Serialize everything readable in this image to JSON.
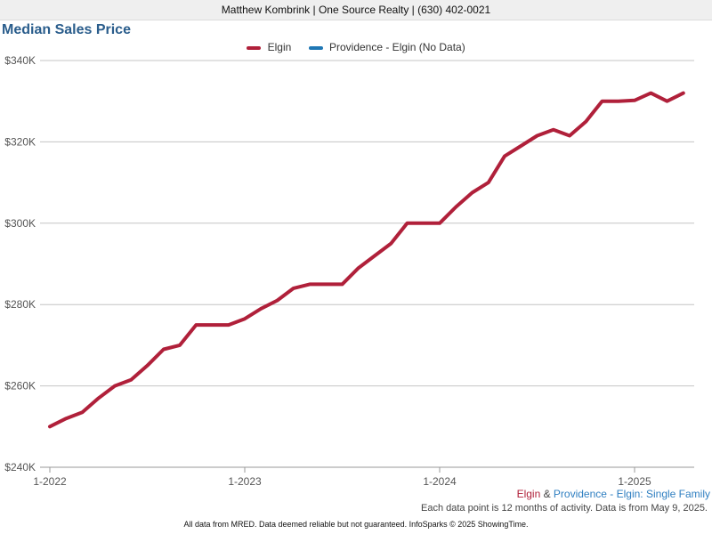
{
  "header": {
    "text": "Matthew Kombrink | One Source Realty | (630) 402-0021"
  },
  "chart_data": {
    "type": "line",
    "title": "Median Sales Price",
    "ylim": [
      240000,
      340000
    ],
    "y_ticks": [
      {
        "value": 240000,
        "label": "$240K"
      },
      {
        "value": 260000,
        "label": "$260K"
      },
      {
        "value": 280000,
        "label": "$280K"
      },
      {
        "value": 300000,
        "label": "$300K"
      },
      {
        "value": 320000,
        "label": "$320K"
      },
      {
        "value": 340000,
        "label": "$340K"
      }
    ],
    "x_ticks": [
      {
        "value": "2022-01",
        "label": "1-2022"
      },
      {
        "value": "2023-01",
        "label": "1-2023"
      },
      {
        "value": "2024-01",
        "label": "1-2024"
      },
      {
        "value": "2025-01",
        "label": "1-2025"
      }
    ],
    "grid": true,
    "legend_position": "top-center",
    "series": [
      {
        "name": "Elgin",
        "color": "#b0203a",
        "points": [
          [
            "2022-01",
            250000
          ],
          [
            "2022-02",
            252000
          ],
          [
            "2022-03",
            253500
          ],
          [
            "2022-04",
            257000
          ],
          [
            "2022-05",
            260000
          ],
          [
            "2022-06",
            261500
          ],
          [
            "2022-07",
            265000
          ],
          [
            "2022-08",
            269000
          ],
          [
            "2022-09",
            270000
          ],
          [
            "2022-10",
            275000
          ],
          [
            "2022-11",
            275000
          ],
          [
            "2022-12",
            275000
          ],
          [
            "2023-01",
            276500
          ],
          [
            "2023-02",
            279000
          ],
          [
            "2023-03",
            281000
          ],
          [
            "2023-04",
            284000
          ],
          [
            "2023-05",
            285000
          ],
          [
            "2023-06",
            285000
          ],
          [
            "2023-07",
            285000
          ],
          [
            "2023-08",
            289000
          ],
          [
            "2023-09",
            292000
          ],
          [
            "2023-10",
            295000
          ],
          [
            "2023-11",
            300000
          ],
          [
            "2023-12",
            300000
          ],
          [
            "2024-01",
            300000
          ],
          [
            "2024-02",
            304000
          ],
          [
            "2024-03",
            307500
          ],
          [
            "2024-04",
            310000
          ],
          [
            "2024-05",
            316500
          ],
          [
            "2024-06",
            319000
          ],
          [
            "2024-07",
            321500
          ],
          [
            "2024-08",
            323000
          ],
          [
            "2024-09",
            321500
          ],
          [
            "2024-10",
            325000
          ],
          [
            "2024-11",
            330000
          ],
          [
            "2024-12",
            330000
          ],
          [
            "2025-01",
            330200
          ],
          [
            "2025-02",
            332000
          ],
          [
            "2025-03",
            330000
          ],
          [
            "2025-04",
            332000
          ]
        ]
      },
      {
        "name": "Providence - Elgin (No Data)",
        "color": "#1f77b4",
        "points": []
      }
    ]
  },
  "geo_label": {
    "area1": "Elgin",
    "joiner": " & ",
    "area2": "Providence - Elgin: Single Family",
    "color1": "#b0203a",
    "color2": "#2f7fc1"
  },
  "note": "Each data point is 12 months of activity. Data is from May 9, 2025.",
  "footer": "All data from MRED. Data deemed reliable but not guaranteed. InfoSparks © 2025 ShowingTime."
}
